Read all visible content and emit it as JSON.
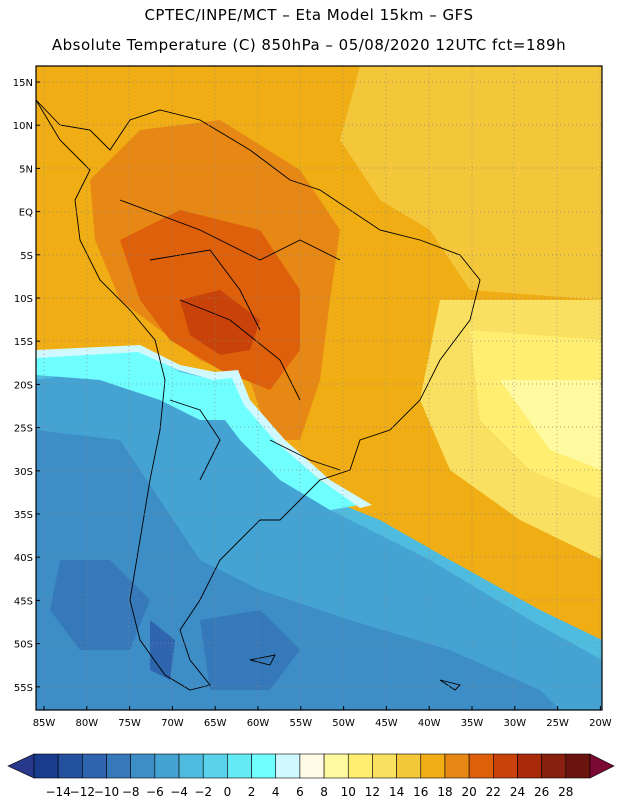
{
  "header": {
    "title_line1": "CPTEC/INPE/MCT –  Eta Model 15km – GFS",
    "title_line2": "Absolute Temperature (C) 850hPa – 05/08/2020 12UTC fct=189h"
  },
  "map": {
    "lat_labels": [
      "15N",
      "10N",
      "5N",
      "EQ",
      "5S",
      "10S",
      "15S",
      "20S",
      "25S",
      "30S",
      "35S",
      "40S",
      "45S",
      "50S",
      "55S"
    ],
    "lon_labels": [
      "85W",
      "80W",
      "75W",
      "70W",
      "65W",
      "60W",
      "55W",
      "50W",
      "45W",
      "40W",
      "35W",
      "30W",
      "25W",
      "20W"
    ]
  },
  "colorbar": {
    "labels": [
      "-14",
      "-12",
      "-10",
      "-8",
      "-6",
      "-4",
      "-2",
      "0",
      "2",
      "4",
      "6",
      "8",
      "10",
      "12",
      "14",
      "16",
      "18",
      "20",
      "22",
      "24",
      "26",
      "28"
    ],
    "colors": [
      "#1a3c8c",
      "#24519e",
      "#2e65ae",
      "#3679bb",
      "#3d8dc7",
      "#45a3d4",
      "#4fbcdf",
      "#5ad3ea",
      "#64eaf4",
      "#70ffff",
      "#d0f8ff",
      "#fffbe6",
      "#fff9a0",
      "#ffee70",
      "#fae060",
      "#f4c63a",
      "#f0ad14",
      "#e88814",
      "#de600a",
      "#c8420a",
      "#a82a0a",
      "#882010",
      "#6a1410"
    ],
    "end_left_color": "#28388a",
    "end_right_color": "#7a0a34"
  }
}
